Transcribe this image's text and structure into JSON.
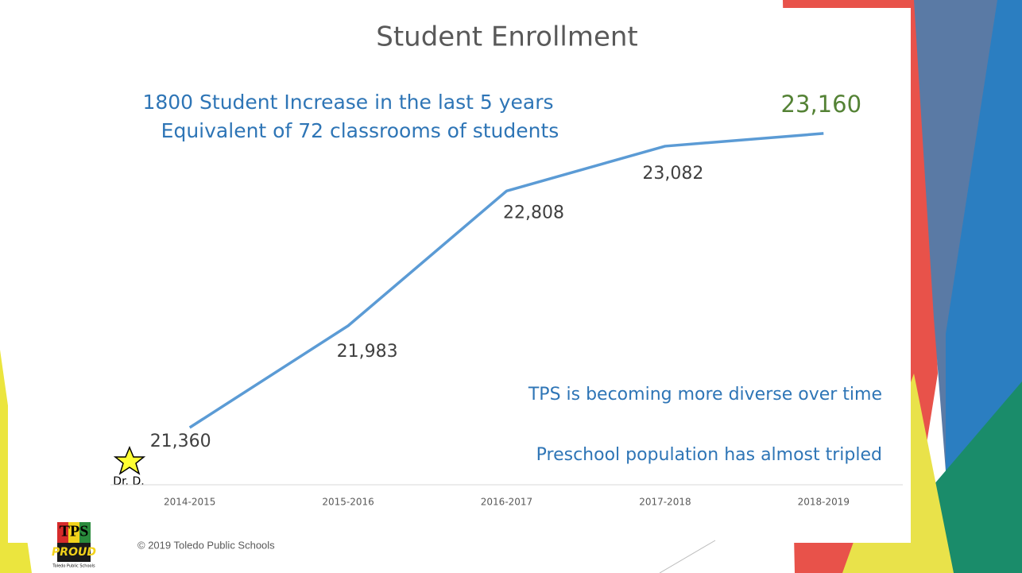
{
  "chart_data": {
    "type": "line",
    "title": "Student Enrollment",
    "annotations": [
      "1800 Student Increase in the last 5 years",
      "Equivalent of 72 classrooms of students",
      "TPS is becoming more diverse over time",
      "Preschool population has almost tripled",
      "Dr. D."
    ],
    "categories": [
      "2014-2015",
      "2015-2016",
      "2016-2017",
      "2017-2018",
      "2018-2019"
    ],
    "values": [
      21360,
      21983,
      22808,
      23082,
      23160
    ],
    "value_labels": [
      "21,360",
      "21,983",
      "22,808",
      "23,082",
      "23,160"
    ],
    "color": "#5b9bd5",
    "ylim": [
      21000,
      23500
    ]
  },
  "footer": {
    "copyright": "© 2019 Toledo Public Schools",
    "logo": [
      "TPS",
      "PROUD",
      "Toledo Public Schools"
    ]
  }
}
